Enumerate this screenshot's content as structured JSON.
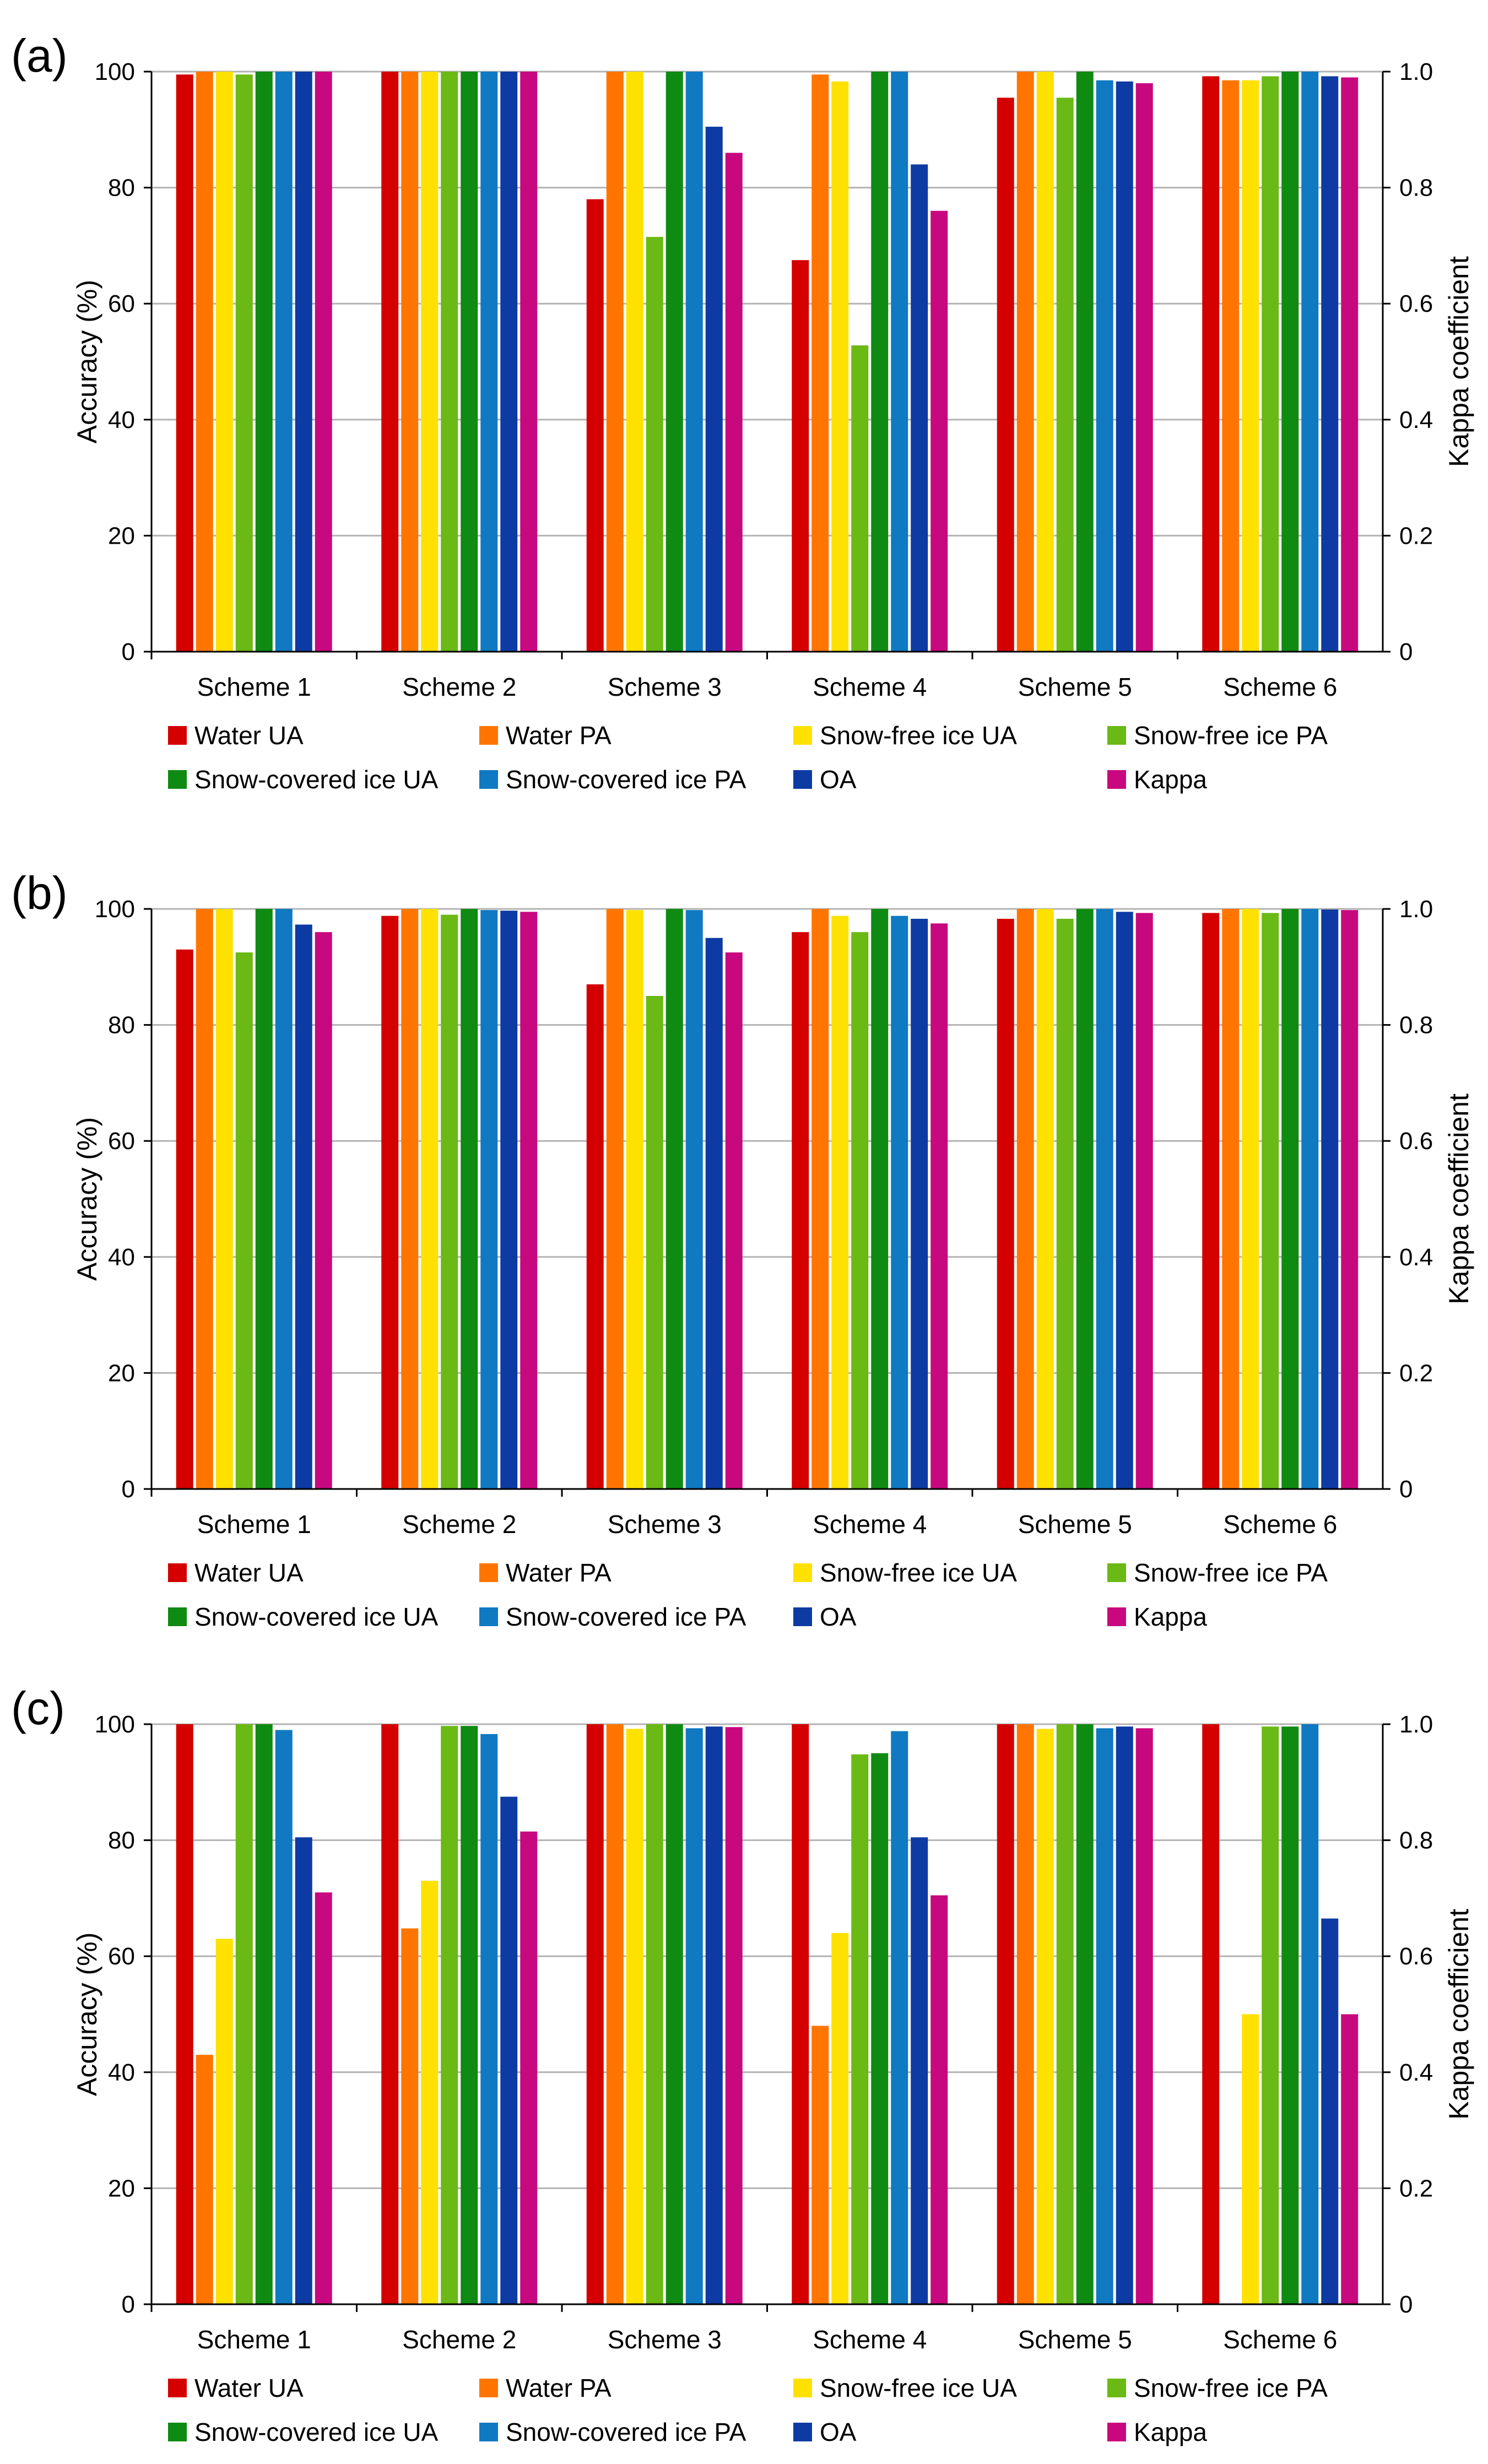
{
  "colors": {
    "series": [
      "#d40000",
      "#ff7500",
      "#ffe100",
      "#6ab915",
      "#0f8a12",
      "#0f79c2",
      "#0d3ba3",
      "#c8087f"
    ],
    "grid": "#b3b3b3",
    "axis": "#000000"
  },
  "chart_data": [
    {
      "panel_label": "(a)",
      "type": "bar",
      "categories": [
        "Scheme 1",
        "Scheme 2",
        "Scheme 3",
        "Scheme 4",
        "Scheme 5",
        "Scheme 6"
      ],
      "ylabel": "Accuracy (%)",
      "y2label": "Kappa coefficient",
      "ylim": [
        0,
        100
      ],
      "y2lim": [
        0,
        1.0
      ],
      "yticks": [
        "0",
        "20",
        "40",
        "60",
        "80",
        "100"
      ],
      "y2ticks": [
        "0",
        "0.2",
        "0.4",
        "0.6",
        "0.8",
        "1.0"
      ],
      "grid": true,
      "legend_position": "bottom",
      "series": [
        {
          "name": "Water UA",
          "values": [
            99.5,
            100,
            78,
            67.5,
            95.5,
            99.2
          ]
        },
        {
          "name": "Water PA",
          "values": [
            100,
            100,
            100,
            99.5,
            100,
            98.5
          ]
        },
        {
          "name": "Snow-free ice UA",
          "values": [
            100,
            100,
            100,
            98.3,
            100,
            98.5
          ]
        },
        {
          "name": "Snow-free ice PA",
          "values": [
            99.5,
            100,
            71.5,
            52.8,
            95.5,
            99.2
          ]
        },
        {
          "name": "Snow-covered ice UA",
          "values": [
            100,
            100,
            100,
            100,
            100,
            100
          ]
        },
        {
          "name": "Snow-covered ice PA",
          "values": [
            100,
            100,
            100,
            100,
            98.5,
            100
          ]
        },
        {
          "name": "OA",
          "values": [
            100,
            100,
            90.5,
            84,
            98.3,
            99.2
          ]
        },
        {
          "name": "Kappa",
          "axis": "right",
          "values": [
            1.0,
            1.0,
            0.86,
            0.76,
            0.98,
            0.99
          ]
        }
      ]
    },
    {
      "panel_label": "(b)",
      "type": "bar",
      "categories": [
        "Scheme 1",
        "Scheme 2",
        "Scheme 3",
        "Scheme 4",
        "Scheme 5",
        "Scheme 6"
      ],
      "ylabel": "Accuracy (%)",
      "y2label": "Kappa coefficient",
      "ylim": [
        0,
        100
      ],
      "y2lim": [
        0,
        1.0
      ],
      "yticks": [
        "0",
        "20",
        "40",
        "60",
        "80",
        "100"
      ],
      "y2ticks": [
        "0",
        "0.2",
        "0.4",
        "0.6",
        "0.8",
        "1.0"
      ],
      "grid": true,
      "legend_position": "bottom",
      "series": [
        {
          "name": "Water UA",
          "values": [
            93,
            98.8,
            87,
            96,
            98.3,
            99.3
          ]
        },
        {
          "name": "Water PA",
          "values": [
            100,
            100,
            100,
            100,
            100,
            100
          ]
        },
        {
          "name": "Snow-free ice UA",
          "values": [
            100,
            100,
            99.8,
            98.8,
            100,
            100
          ]
        },
        {
          "name": "Snow-free ice PA",
          "values": [
            92.5,
            99,
            85,
            96,
            98.3,
            99.3
          ]
        },
        {
          "name": "Snow-covered ice UA",
          "values": [
            100,
            100,
            100,
            100,
            100,
            100
          ]
        },
        {
          "name": "Snow-covered ice PA",
          "values": [
            100,
            99.8,
            99.8,
            98.8,
            100,
            100
          ]
        },
        {
          "name": "OA",
          "values": [
            97.3,
            99.7,
            95,
            98.3,
            99.5,
            99.9
          ]
        },
        {
          "name": "Kappa",
          "axis": "right",
          "values": [
            0.96,
            0.995,
            0.925,
            0.975,
            0.993,
            0.998
          ]
        }
      ]
    },
    {
      "panel_label": "(c)",
      "type": "bar",
      "categories": [
        "Scheme 1",
        "Scheme 2",
        "Scheme 3",
        "Scheme 4",
        "Scheme 5",
        "Scheme 6"
      ],
      "ylabel": "Accuracy (%)",
      "y2label": "Kappa coefficient",
      "ylim": [
        0,
        100
      ],
      "y2lim": [
        0,
        1.0
      ],
      "yticks": [
        "0",
        "20",
        "40",
        "60",
        "80",
        "100"
      ],
      "y2ticks": [
        "0",
        "0.2",
        "0.4",
        "0.6",
        "0.8",
        "1.0"
      ],
      "grid": true,
      "legend_position": "bottom",
      "series": [
        {
          "name": "Water UA",
          "values": [
            100,
            100,
            100,
            100,
            100,
            100
          ]
        },
        {
          "name": "Water PA",
          "values": [
            43,
            64.8,
            100,
            48,
            100,
            0
          ]
        },
        {
          "name": "Snow-free ice UA",
          "values": [
            63,
            73,
            99.2,
            64,
            99.2,
            50
          ]
        },
        {
          "name": "Snow-free ice PA",
          "values": [
            100,
            99.7,
            100,
            94.8,
            100,
            99.6
          ]
        },
        {
          "name": "Snow-covered ice UA",
          "values": [
            100,
            99.7,
            100,
            95,
            100,
            99.6
          ]
        },
        {
          "name": "Snow-covered ice PA",
          "values": [
            99,
            98.3,
            99.3,
            98.8,
            99.3,
            100
          ]
        },
        {
          "name": "OA",
          "values": [
            80.5,
            87.5,
            99.6,
            80.5,
            99.6,
            66.5
          ]
        },
        {
          "name": "Kappa",
          "axis": "right",
          "values": [
            0.71,
            0.815,
            0.995,
            0.705,
            0.993,
            0.5
          ]
        }
      ]
    }
  ]
}
